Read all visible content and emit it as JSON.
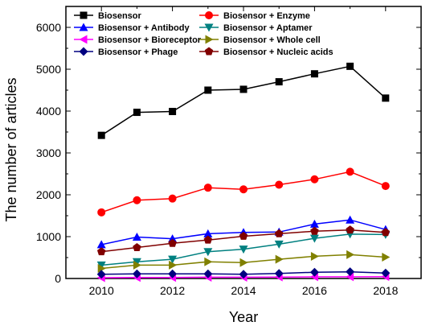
{
  "chart_data": {
    "type": "line",
    "title": "",
    "xlabel": "Year",
    "ylabel": "The number of articles",
    "xlim": [
      2009,
      2019
    ],
    "ylim": [
      0,
      6500
    ],
    "x_ticks": [
      "2010",
      "2012",
      "2014",
      "2016",
      "2018"
    ],
    "y_ticks": [
      "0",
      "1000",
      "2000",
      "3000",
      "4000",
      "5000",
      "6000"
    ],
    "grid": false,
    "legend_position": "top-left (inside)",
    "x": [
      2010,
      2011,
      2012,
      2013,
      2014,
      2015,
      2016,
      2017,
      2018
    ],
    "series": [
      {
        "name": "Biosensor",
        "color": "#000000",
        "marker": "square",
        "values": [
          3420,
          3970,
          3990,
          4500,
          4520,
          4700,
          4890,
          5070,
          4310
        ]
      },
      {
        "name": "Biosensor + Enzyme",
        "color": "#ff0000",
        "marker": "circle",
        "values": [
          1580,
          1870,
          1910,
          2170,
          2130,
          2240,
          2370,
          2550,
          2210
        ]
      },
      {
        "name": "Biosensor + Antibody",
        "color": "#0000ff",
        "marker": "triangle-up",
        "values": [
          810,
          990,
          950,
          1070,
          1100,
          1110,
          1300,
          1400,
          1170
        ]
      },
      {
        "name": "Biosensor + Aptamer",
        "color": "#008080",
        "marker": "triangle-down",
        "values": [
          320,
          400,
          460,
          640,
          700,
          820,
          960,
          1060,
          1050
        ]
      },
      {
        "name": "Biosensor + Bioreceptor",
        "color": "#ff00ff",
        "marker": "triangle-left",
        "values": [
          20,
          25,
          25,
          30,
          30,
          35,
          40,
          40,
          45
        ]
      },
      {
        "name": "Biosensor + Whole cell",
        "color": "#808000",
        "marker": "triangle-right",
        "values": [
          240,
          320,
          320,
          400,
          380,
          460,
          530,
          570,
          510
        ]
      },
      {
        "name": "Biosensor + Phage",
        "color": "#000080",
        "marker": "diamond",
        "values": [
          100,
          110,
          110,
          110,
          100,
          120,
          150,
          160,
          130
        ]
      },
      {
        "name": "Biosensor + Nucleic acids",
        "color": "#800000",
        "marker": "pentagon",
        "values": [
          640,
          740,
          840,
          920,
          1010,
          1070,
          1130,
          1160,
          1100
        ]
      }
    ]
  }
}
